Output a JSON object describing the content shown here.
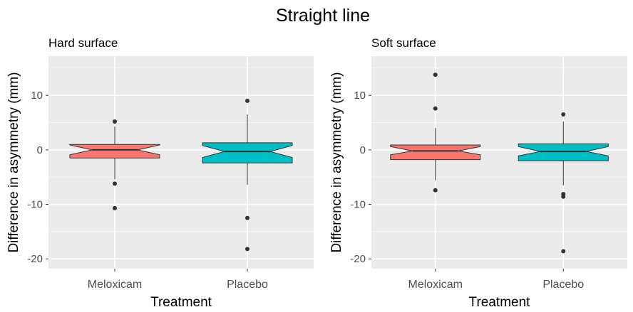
{
  "figure": {
    "title": "Straight line"
  },
  "colors": {
    "panel_bg": "#EBEBEB",
    "grid_major": "#FFFFFF",
    "grid_minor": "#F5F5F5",
    "tick_label": "#4D4D4D",
    "outline": "#333333",
    "meloxicam_fill": "#F8766D",
    "placebo_fill": "#00BFC4"
  },
  "chart_data": [
    {
      "type": "box",
      "subtitle": "Hard surface",
      "xlabel": "Treatment",
      "ylabel": "Difference in asymmetry (mm)",
      "ylim": [
        -21.8,
        17.2
      ],
      "yticks": [
        10,
        0,
        -10,
        -20
      ],
      "ytick_labels": [
        "10",
        "0",
        "-10",
        "-20"
      ],
      "categories": [
        "Meloxicam",
        "Placebo"
      ],
      "boxes": [
        {
          "category": "Meloxicam",
          "q1": -1.5,
          "median": 0.0,
          "q3": 1.0,
          "notch_low": -0.9,
          "notch_high": 0.9,
          "whisker_low": -5.4,
          "whisker_high": 4.3,
          "outliers": [
            5.2,
            -6.2,
            -10.7
          ]
        },
        {
          "category": "Placebo",
          "q1": -2.4,
          "median": -0.3,
          "q3": 1.3,
          "notch_low": -1.4,
          "notch_high": 0.8,
          "whisker_low": -6.4,
          "whisker_high": 6.5,
          "outliers": [
            9.0,
            -12.5,
            -18.2
          ]
        }
      ]
    },
    {
      "type": "box",
      "subtitle": "Soft surface",
      "xlabel": "Treatment",
      "ylabel": "Difference in asymmetry (mm)",
      "ylim": [
        -21.8,
        17.2
      ],
      "yticks": [
        10,
        0,
        -10,
        -20
      ],
      "ytick_labels": [
        "10",
        "0",
        "-10",
        "-20"
      ],
      "categories": [
        "Meloxicam",
        "Placebo"
      ],
      "boxes": [
        {
          "category": "Meloxicam",
          "q1": -1.8,
          "median": -0.2,
          "q3": 0.9,
          "notch_low": -0.9,
          "notch_high": 0.6,
          "whisker_low": -5.6,
          "whisker_high": 4.0,
          "outliers": [
            13.8,
            7.6,
            -7.4
          ]
        },
        {
          "category": "Placebo",
          "q1": -2.0,
          "median": -0.3,
          "q3": 1.1,
          "notch_low": -1.1,
          "notch_high": 0.6,
          "whisker_low": -6.5,
          "whisker_high": 5.2,
          "outliers": [
            6.5,
            -8.1,
            -8.6,
            -18.6
          ]
        }
      ]
    }
  ]
}
